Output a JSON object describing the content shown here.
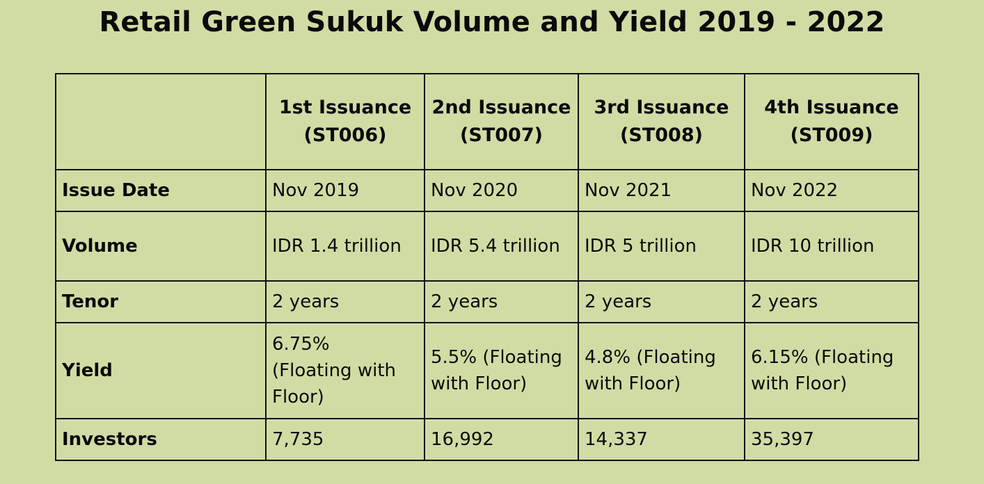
{
  "title": "Retail Green Sukuk Volume and Yield 2019 - 2022",
  "table": {
    "corner": "",
    "columns": [
      {
        "line1": "1st Issuance",
        "line2": "(ST006)"
      },
      {
        "line1": "2nd Issuance",
        "line2": "(ST007)"
      },
      {
        "line1": "3rd Issuance",
        "line2": "(ST008)"
      },
      {
        "line1": "4th Issuance",
        "line2": "(ST009)"
      }
    ],
    "rows": {
      "issue_date": {
        "label": "Issue Date",
        "values": [
          "Nov 2019",
          "Nov 2020",
          "Nov 2021",
          "Nov 2022"
        ]
      },
      "volume": {
        "label": "Volume",
        "values": [
          "IDR 1.4 trillion",
          "IDR 5.4 trillion",
          "IDR 5 trillion",
          "IDR 10 trillion"
        ]
      },
      "tenor": {
        "label": "Tenor",
        "values": [
          "2 years",
          "2 years",
          "2 years",
          "2 years"
        ]
      },
      "yield": {
        "label": "Yield",
        "values": [
          [
            "6.75%",
            "(Floating with",
            "Floor)"
          ],
          [
            "5.5% (Floating",
            "with Floor)"
          ],
          [
            "4.8% (Floating",
            "with Floor)"
          ],
          [
            "6.15% (Floating",
            "with Floor)"
          ]
        ]
      },
      "investors": {
        "label": "Investors",
        "values": [
          "7,735",
          "16,992",
          "14,337",
          "35,397"
        ]
      }
    }
  }
}
